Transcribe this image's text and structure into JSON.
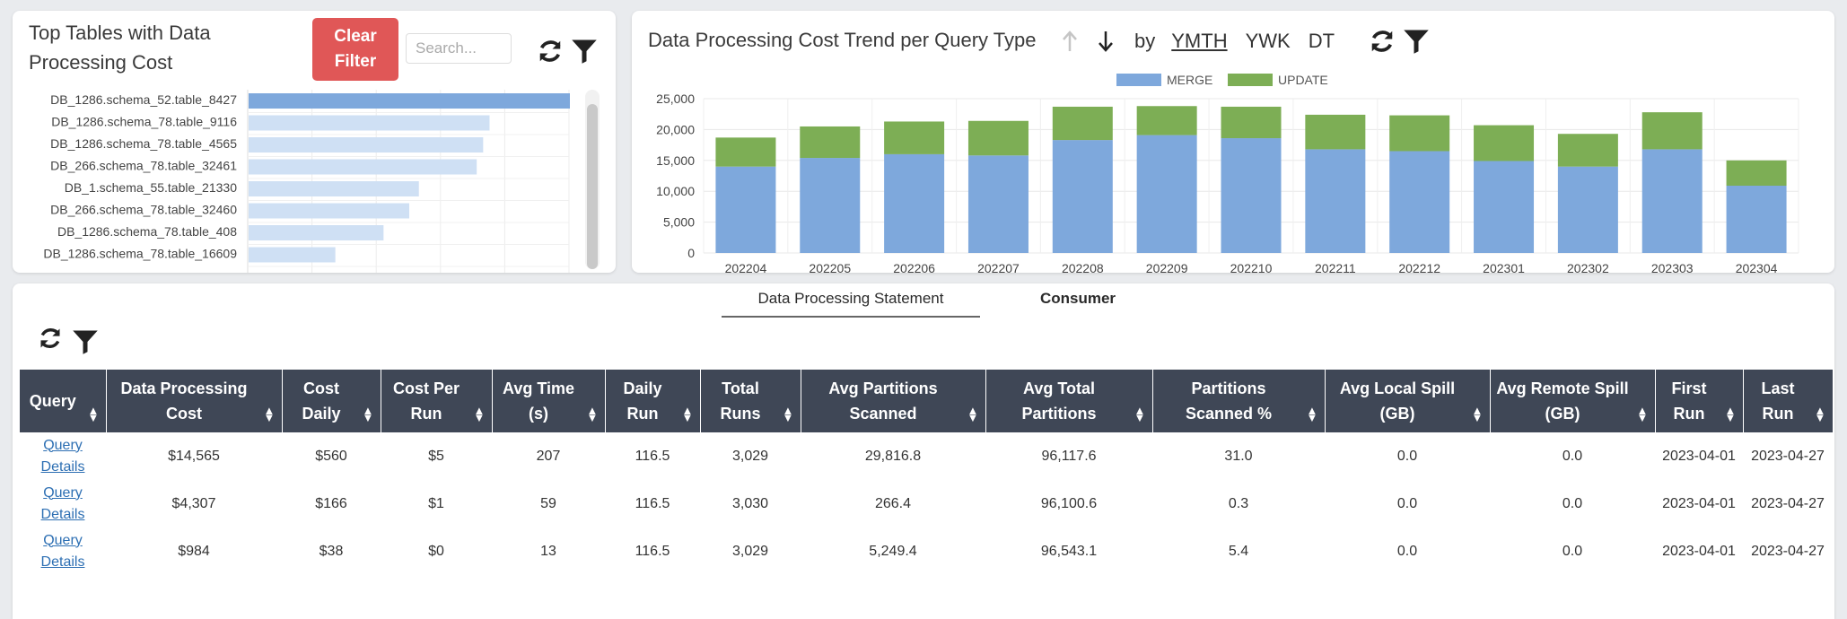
{
  "top_tables": {
    "title": "Top Tables with Data Processing Cost",
    "clear_filter_label": "Clear\nFilter",
    "search_placeholder": "Search...",
    "icons": [
      "refresh-icon",
      "filter-icon"
    ],
    "bar_color_top": "#7ea8dc",
    "bar_color": "#cfe0f4",
    "chart_data": {
      "type": "bar",
      "orientation": "horizontal",
      "categories": [
        "DB_1286.schema_52.table_8427",
        "DB_1286.schema_78.table_9116",
        "DB_1286.schema_78.table_4565",
        "DB_266.schema_78.table_32461",
        "DB_1.schema_55.table_21330",
        "DB_266.schema_78.table_32460",
        "DB_1286.schema_78.table_408",
        "DB_1286.schema_78.table_16609"
      ],
      "values": [
        100,
        75,
        73,
        71,
        53,
        50,
        42,
        27
      ],
      "grid": true
    }
  },
  "trend": {
    "title": "Data Processing Cost Trend per Query Type",
    "by_label": "by",
    "links": [
      "YMTH",
      "YWK",
      "DT"
    ],
    "icons": [
      "sort-asc-icon",
      "sort-desc-icon",
      "refresh-icon",
      "filter-icon"
    ],
    "chart_data": {
      "type": "bar",
      "stacked": true,
      "categories": [
        "202204",
        "202205",
        "202206",
        "202207",
        "202208",
        "202209",
        "202210",
        "202211",
        "202212",
        "202301",
        "202302",
        "202303",
        "202304"
      ],
      "series": [
        {
          "name": "MERGE",
          "color": "#7ea8dc",
          "values": [
            14000,
            15400,
            16000,
            15800,
            18300,
            19100,
            18600,
            16800,
            16500,
            14900,
            14000,
            16800,
            10900
          ]
        },
        {
          "name": "UPDATE",
          "color": "#7dae55",
          "values": [
            4700,
            5100,
            5300,
            5600,
            5400,
            4700,
            5100,
            5600,
            5800,
            5800,
            5300,
            6000,
            4100
          ]
        }
      ],
      "ylim": [
        0,
        25000
      ],
      "yticks": [
        "0",
        "5,000",
        "10,000",
        "15,000",
        "20,000",
        "25,000"
      ],
      "legend": "top",
      "grid": true
    }
  },
  "tabs": [
    "Data Processing Statement",
    "Consumer"
  ],
  "table": {
    "icons": [
      "refresh-icon",
      "filter-icon"
    ],
    "columns": [
      "Query",
      "Data Processing Cost",
      "Cost Daily",
      "Cost Per Run",
      "Avg Time (s)",
      "Daily Run",
      "Total Runs",
      "Avg Partitions Scanned",
      "Avg Total Partitions",
      "Partitions Scanned %",
      "Avg Local Spill (GB)",
      "Avg Remote Spill (GB)",
      "First Run",
      "Last Run"
    ],
    "rows": [
      [
        "Query Details",
        "$14,565",
        "$560",
        "$5",
        "207",
        "116.5",
        "3,029",
        "29,816.8",
        "96,117.6",
        "31.0",
        "0.0",
        "0.0",
        "2023-04-01",
        "2023-04-27"
      ],
      [
        "Query Details",
        "$4,307",
        "$166",
        "$1",
        "59",
        "116.5",
        "3,030",
        "266.4",
        "96,100.6",
        "0.3",
        "0.0",
        "0.0",
        "2023-04-01",
        "2023-04-27"
      ],
      [
        "Query Details",
        "$984",
        "$38",
        "$0",
        "13",
        "116.5",
        "3,029",
        "5,249.4",
        "96,543.1",
        "5.4",
        "0.0",
        "0.0",
        "2023-04-01",
        "2023-04-27"
      ]
    ]
  }
}
